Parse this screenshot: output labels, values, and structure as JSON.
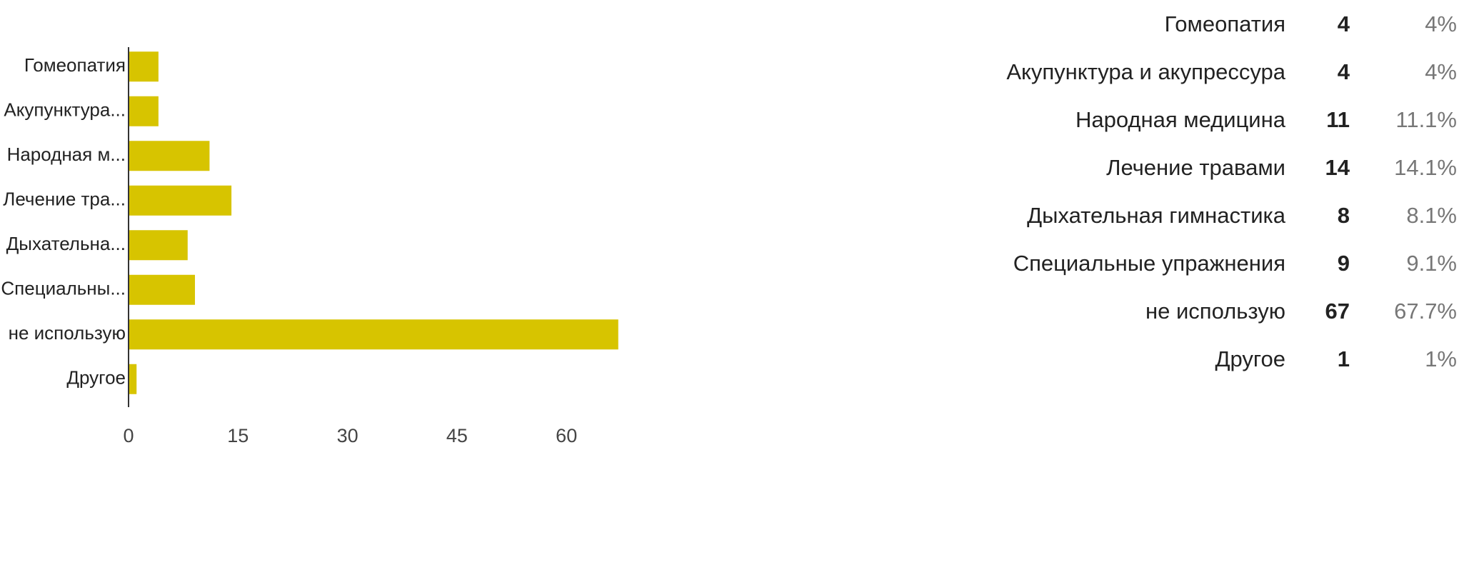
{
  "chart_data": {
    "type": "bar",
    "orientation": "horizontal",
    "categories": [
      "Гомеопатия",
      "Акупунктура...",
      "Народная м...",
      "Лечение тра...",
      "Дыхательна...",
      "Специальны...",
      "не использую",
      "Другое"
    ],
    "values": [
      4,
      4,
      11,
      14,
      8,
      9,
      67,
      1
    ],
    "xticks": [
      0,
      15,
      30,
      45,
      60
    ],
    "xlim": [
      0,
      75
    ],
    "grid": false,
    "bar_color": "#d7c400"
  },
  "summary": {
    "rows": [
      {
        "label": "Гомеопатия",
        "count": "4",
        "percent": "4%"
      },
      {
        "label": "Акупунктура и акупрессура",
        "count": "4",
        "percent": "4%"
      },
      {
        "label": "Народная медицина",
        "count": "11",
        "percent": "11.1%"
      },
      {
        "label": "Лечение травами",
        "count": "14",
        "percent": "14.1%"
      },
      {
        "label": "Дыхательная гимнастика",
        "count": "8",
        "percent": "8.1%"
      },
      {
        "label": "Специальные упражнения",
        "count": "9",
        "percent": "9.1%"
      },
      {
        "label": "не использую",
        "count": "67",
        "percent": "67.7%"
      },
      {
        "label": "Другое",
        "count": "1",
        "percent": "1%"
      }
    ]
  }
}
